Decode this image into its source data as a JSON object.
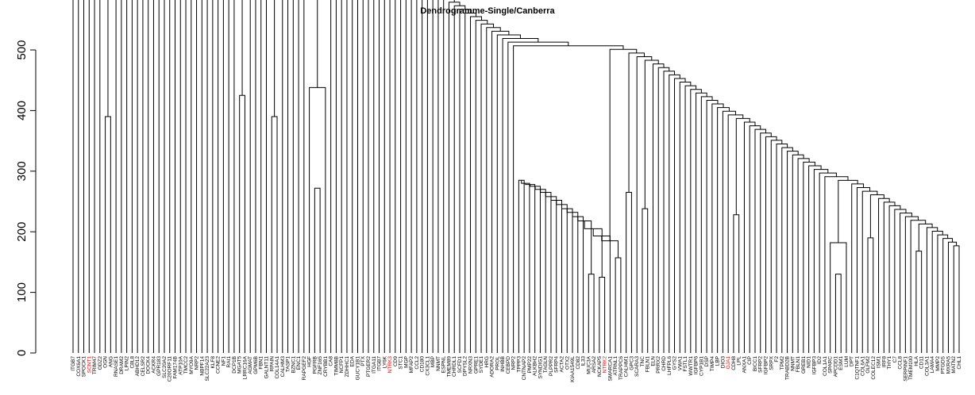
{
  "chart_data": {
    "type": "dendrogram",
    "title": "Dendrogramme-Single/Canberra",
    "ylim": [
      0,
      500
    ],
    "yticks": [
      0,
      100,
      200,
      300,
      400,
      500
    ],
    "highlight_color": "#ff0000",
    "leaves": [
      "ITGB7",
      "COX6A1",
      "SPOCK1",
      "SCNT1",
      "TRIM47",
      "ODZ2",
      "OGN",
      "ANG",
      "RNASE1",
      "DRAM2",
      "LPIN2",
      "C8L8",
      "ABHD12",
      "CELSR2",
      "DOCK4",
      "ACKR4",
      "GPR183",
      "SLC20A2",
      "C20ORF11",
      "FAM174B",
      "ATP10A",
      "TMCC2",
      "MYO9A",
      "NRP2",
      "NBPF14",
      "SLC22A23",
      "KLF8",
      "CCNE2",
      "NF1",
      "RAI1",
      "DCP1B",
      "MGAT5",
      "LRRC16A",
      "AGMAT",
      "GPM6B",
      "FBN1",
      "GALNT11",
      "RPAIN",
      "COL14A1",
      "CALHM3",
      "TASP1",
      "BZNC1",
      "ENC1",
      "RAPGEF2",
      "HGF",
      "PGFRB",
      "ZNF165",
      "CRYBB1",
      "CA8",
      "TIMM8B",
      "NCFP1",
      "ZDHHC1",
      "EDA",
      "GUCY1B1",
      "PTX",
      "PTGER2",
      "ITGA11",
      "ITGB7",
      "LY6K",
      "NTRK3",
      "CD9",
      "STC1",
      "MGP",
      "MFAP2",
      "CCL2",
      "CD180",
      "CX3CL1",
      "MBP",
      "NNMT",
      "ESPNL",
      "TMEM89",
      "CHRDL1",
      "SCFD1",
      "DPYSL2",
      "NRXN3",
      "GPRE1",
      "SYDE1",
      "HRG",
      "ADORA2",
      "PROL",
      "INHBB",
      "CEBPD",
      "NRP2",
      "TPPP3",
      "CNTNAP2",
      "PMP22",
      "ALKBH2",
      "SYNDIG1",
      "TAGLN",
      "PLPPR2",
      "SFRP4",
      "ACTA2",
      "OTX2",
      "KIAA1549L",
      "CD82",
      "IL33",
      "MUC3A",
      "ARSA2",
      "NCKAP5",
      "NTRK2",
      "SMARCA1",
      "ATRNL1",
      "TRAPPC6",
      "CALHM1",
      "GPC3",
      "SCARA3",
      "TNC",
      "FBLN1",
      "ELN",
      "PRRX2",
      "CHRD",
      "LHFPL6",
      "GYS2",
      "VWA1",
      "FSTL1",
      "WWTR1",
      "IGFBP6",
      "CYP1B1",
      "DSP",
      "TIMP4",
      "LBP",
      "DIO3",
      "GJA1",
      "CDH8",
      "LPL",
      "ANXA1",
      "CIP",
      "BICC1",
      "SFRP2",
      "IGFBP2",
      "SRPX",
      "F2",
      "TPM2",
      "TRABD2B",
      "NNMT",
      "FBLN1",
      "GREB1",
      "NID1",
      "IGFBP3",
      "ID2",
      "COL1A1",
      "SPARC",
      "APCDD1",
      "ESM1",
      "LUM",
      "DPT",
      "C1QTNF1",
      "COL6A1",
      "OLFM2",
      "COLEC12",
      "ISM1",
      "IRF8",
      "THY1",
      "C7",
      "CCL8",
      "SERPINF1",
      "TMEM100",
      "HLA",
      "CD11",
      "COL3A1",
      "LAMA4",
      "MMP2",
      "PTGDS",
      "MXRA5",
      "MATN2",
      "CHL1"
    ],
    "highlighted_leaves": [
      "SCNT1",
      "NTRK3",
      "NTRK2",
      "GJA1"
    ]
  }
}
